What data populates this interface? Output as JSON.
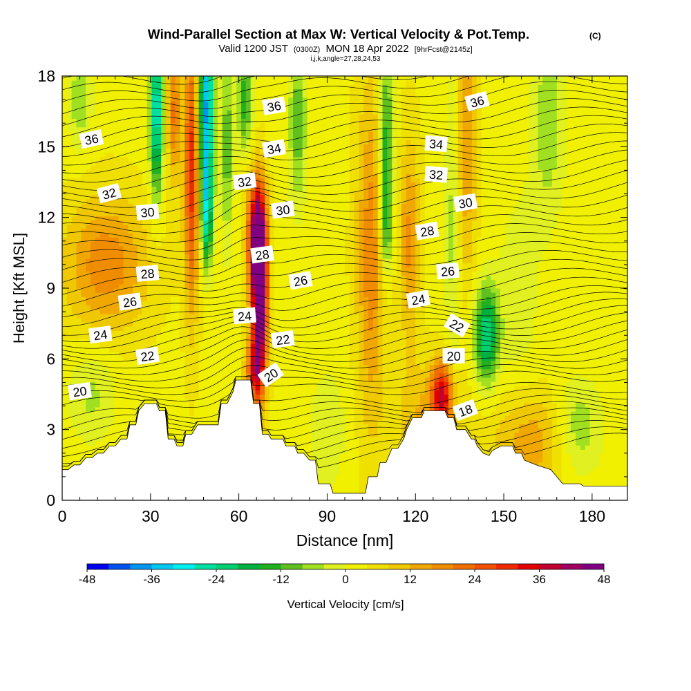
{
  "chart_data": {
    "type": "heatmap",
    "title": "Wind-Parallel Section at Max W: Vertical Velocity & Pot.Temp.",
    "title_tag": "(C)",
    "subtitle": {
      "valid": "Valid 1200 JST",
      "utc": "(0300Z)",
      "date": "MON 18 Apr 2022",
      "forecast": "[9hrFcst@2145z]"
    },
    "subtitle2": "i,j,k,angle=27,28,24,53",
    "xlabel": "Distance [nm]",
    "ylabel": "Height [Kft MSL]",
    "xlim": [
      0,
      192
    ],
    "ylim": [
      0,
      18
    ],
    "xticks": [
      0,
      30,
      60,
      90,
      120,
      150,
      180
    ],
    "yticks": [
      0,
      3,
      6,
      9,
      12,
      15,
      18
    ],
    "colorbar": {
      "label": "Vertical Velocity [cm/s]",
      "range": [
        -48,
        48
      ],
      "step": 4,
      "ticks": [
        -48,
        -36,
        -24,
        -12,
        0,
        12,
        24,
        36,
        48
      ],
      "colors": [
        "#0000f0",
        "#0050f0",
        "#0096f0",
        "#00c8f0",
        "#00f0f0",
        "#00e0a0",
        "#00d070",
        "#00b040",
        "#20b020",
        "#60c020",
        "#a0e020",
        "#e0f020",
        "#f0f000",
        "#f0e000",
        "#f0c800",
        "#f0a800",
        "#f08c00",
        "#f06e00",
        "#f05000",
        "#f02800",
        "#e00000",
        "#c00030",
        "#a00060",
        "#800080"
      ]
    },
    "theta_contours_C": [
      18,
      20,
      22,
      24,
      26,
      28,
      30,
      32,
      34,
      36
    ],
    "contour_labels": [
      {
        "text": "36",
        "x": 10,
        "y": 15.3,
        "angle": -12
      },
      {
        "text": "36",
        "x": 72,
        "y": 16.7,
        "angle": -10
      },
      {
        "text": "36",
        "x": 141,
        "y": 16.9,
        "angle": -15
      },
      {
        "text": "34",
        "x": 72,
        "y": 14.9,
        "angle": -10
      },
      {
        "text": "34",
        "x": 127,
        "y": 15.1,
        "angle": 5
      },
      {
        "text": "32",
        "x": 16,
        "y": 13.0,
        "angle": -15
      },
      {
        "text": "32",
        "x": 62,
        "y": 13.5,
        "angle": -8
      },
      {
        "text": "32",
        "x": 127,
        "y": 13.8,
        "angle": 5
      },
      {
        "text": "30",
        "x": 29,
        "y": 12.2,
        "angle": -5
      },
      {
        "text": "30",
        "x": 75,
        "y": 12.3,
        "angle": -8
      },
      {
        "text": "30",
        "x": 137,
        "y": 12.6,
        "angle": -10
      },
      {
        "text": "28",
        "x": 29,
        "y": 9.6,
        "angle": -5
      },
      {
        "text": "28",
        "x": 68,
        "y": 10.4,
        "angle": -8
      },
      {
        "text": "28",
        "x": 124,
        "y": 11.4,
        "angle": -10
      },
      {
        "text": "26",
        "x": 23,
        "y": 8.4,
        "angle": -8
      },
      {
        "text": "26",
        "x": 81,
        "y": 9.3,
        "angle": -10
      },
      {
        "text": "26",
        "x": 131,
        "y": 9.7,
        "angle": -5
      },
      {
        "text": "24",
        "x": 13,
        "y": 7.0,
        "angle": -8
      },
      {
        "text": "24",
        "x": 62,
        "y": 7.8,
        "angle": -5
      },
      {
        "text": "24",
        "x": 121,
        "y": 8.5,
        "angle": -10
      },
      {
        "text": "22",
        "x": 29,
        "y": 6.1,
        "angle": -8
      },
      {
        "text": "22",
        "x": 75,
        "y": 6.8,
        "angle": -8
      },
      {
        "text": "22",
        "x": 134,
        "y": 7.4,
        "angle": 30
      },
      {
        "text": "20",
        "x": 6,
        "y": 4.6,
        "angle": -8
      },
      {
        "text": "20",
        "x": 71,
        "y": 5.3,
        "angle": -35
      },
      {
        "text": "20",
        "x": 133,
        "y": 6.1,
        "angle": 0
      },
      {
        "text": "18",
        "x": 137,
        "y": 3.8,
        "angle": -20
      }
    ],
    "terrain_kft": [
      [
        0,
        1.3
      ],
      [
        2,
        1.3
      ],
      [
        4,
        1.5
      ],
      [
        6,
        1.5
      ],
      [
        8,
        1.8
      ],
      [
        10,
        1.8
      ],
      [
        12,
        2.0
      ],
      [
        14,
        2.0
      ],
      [
        16,
        2.3
      ],
      [
        18,
        2.3
      ],
      [
        20,
        2.6
      ],
      [
        22,
        2.6
      ],
      [
        23,
        3.2
      ],
      [
        25,
        3.2
      ],
      [
        26,
        3.8
      ],
      [
        28,
        4.1
      ],
      [
        32,
        4.1
      ],
      [
        33,
        3.8
      ],
      [
        35,
        3.8
      ],
      [
        36,
        2.6
      ],
      [
        38,
        2.6
      ],
      [
        39,
        2.3
      ],
      [
        41,
        2.3
      ],
      [
        42,
        2.8
      ],
      [
        44,
        2.8
      ],
      [
        46,
        3.2
      ],
      [
        49,
        3.2
      ],
      [
        51,
        3.2
      ],
      [
        53,
        3.2
      ],
      [
        54,
        4.1
      ],
      [
        56,
        4.1
      ],
      [
        58,
        4.6
      ],
      [
        59,
        5.1
      ],
      [
        64,
        5.1
      ],
      [
        65,
        4.1
      ],
      [
        67,
        4.1
      ],
      [
        68,
        2.8
      ],
      [
        70,
        2.8
      ],
      [
        71,
        2.6
      ],
      [
        75,
        2.6
      ],
      [
        76,
        2.3
      ],
      [
        79,
        2.3
      ],
      [
        80,
        2.0
      ],
      [
        82,
        2.0
      ],
      [
        84,
        1.7
      ],
      [
        86,
        1.7
      ],
      [
        87,
        0.7
      ],
      [
        91,
        0.7
      ],
      [
        92,
        0.3
      ],
      [
        103,
        0.3
      ],
      [
        104,
        1.0
      ],
      [
        107,
        1.0
      ],
      [
        108,
        1.6
      ],
      [
        110,
        1.6
      ],
      [
        112,
        2.2
      ],
      [
        114,
        2.2
      ],
      [
        116,
        2.6
      ],
      [
        117,
        3.0
      ],
      [
        119,
        3.5
      ],
      [
        122,
        3.5
      ],
      [
        123,
        3.8
      ],
      [
        128,
        3.8
      ],
      [
        130,
        3.8
      ],
      [
        131,
        3.5
      ],
      [
        133,
        3.5
      ],
      [
        134,
        3.0
      ],
      [
        137,
        3.0
      ],
      [
        139,
        2.6
      ],
      [
        140,
        2.6
      ],
      [
        141,
        2.3
      ],
      [
        143,
        2.0
      ],
      [
        145,
        1.9
      ],
      [
        146,
        2.1
      ],
      [
        149,
        2.3
      ],
      [
        153,
        2.3
      ],
      [
        154,
        2.0
      ],
      [
        156,
        2.0
      ],
      [
        157,
        1.7
      ],
      [
        161,
        1.5
      ],
      [
        166,
        1.3
      ],
      [
        168,
        1.0
      ],
      [
        170,
        0.7
      ],
      [
        176,
        0.7
      ],
      [
        177,
        0.6
      ],
      [
        185,
        0.6
      ],
      [
        192,
        0.6
      ]
    ],
    "w_features": [
      {
        "x": 67,
        "y": 8.6,
        "sx": 1.8,
        "sy": 2.6,
        "w": 52
      },
      {
        "x": 66,
        "y": 11.2,
        "sx": 2.2,
        "sy": 1.6,
        "w": 36
      },
      {
        "x": 65,
        "y": 5.5,
        "sx": 2.0,
        "sy": 0.9,
        "w": 22
      },
      {
        "x": 44,
        "y": 14.0,
        "sx": 1.8,
        "sy": 4.0,
        "w": 28
      },
      {
        "x": 38,
        "y": 16.5,
        "sx": 1.6,
        "sy": 2.0,
        "w": 18
      },
      {
        "x": 15,
        "y": 10.0,
        "sx": 10,
        "sy": 2.0,
        "w": 16
      },
      {
        "x": 105,
        "y": 10.5,
        "sx": 3.5,
        "sy": 5.0,
        "w": 16
      },
      {
        "x": 118,
        "y": 11.0,
        "sx": 2.5,
        "sy": 3.0,
        "w": 14
      },
      {
        "x": 129,
        "y": 4.5,
        "sx": 2.5,
        "sy": 1.0,
        "w": 28
      },
      {
        "x": 137,
        "y": 15.0,
        "sx": 2.5,
        "sy": 4.0,
        "w": 14
      },
      {
        "x": 125,
        "y": 3.5,
        "sx": 8,
        "sy": 1.6,
        "w": 10
      },
      {
        "x": 160,
        "y": 2.5,
        "sx": 10,
        "sy": 1.5,
        "w": 12
      },
      {
        "x": 32,
        "y": 16.5,
        "sx": 1.6,
        "sy": 2.5,
        "w": -32
      },
      {
        "x": 49,
        "y": 16.5,
        "sx": 1.8,
        "sy": 3.0,
        "w": -40
      },
      {
        "x": 49,
        "y": 12.0,
        "sx": 1.4,
        "sy": 1.5,
        "w": -20
      },
      {
        "x": 56,
        "y": 15.0,
        "sx": 1.5,
        "sy": 3.0,
        "w": -14
      },
      {
        "x": 62,
        "y": 17.0,
        "sx": 1.8,
        "sy": 1.5,
        "w": -18
      },
      {
        "x": 80,
        "y": 16.0,
        "sx": 2.2,
        "sy": 2.5,
        "w": -14
      },
      {
        "x": 110,
        "y": 15.0,
        "sx": 1.8,
        "sy": 3.0,
        "w": -20
      },
      {
        "x": 110,
        "y": 11.5,
        "sx": 1.4,
        "sy": 1.5,
        "w": -12
      },
      {
        "x": 144,
        "y": 7.0,
        "sx": 3.0,
        "sy": 1.5,
        "w": -26
      },
      {
        "x": 133,
        "y": 12.0,
        "sx": 2.0,
        "sy": 5.0,
        "w": -10
      },
      {
        "x": 165,
        "y": 16.0,
        "sx": 4.0,
        "sy": 3.0,
        "w": -10
      },
      {
        "x": 175,
        "y": 3.0,
        "sx": 6.0,
        "sy": 1.5,
        "w": -12
      },
      {
        "x": 10,
        "y": 4.5,
        "sx": 6.0,
        "sy": 1.5,
        "w": -8
      },
      {
        "x": 6,
        "y": 17.0,
        "sx": 3.0,
        "sy": 1.5,
        "w": -10
      },
      {
        "x": 155,
        "y": 9.0,
        "sx": 5.0,
        "sy": 3.0,
        "w": -6
      },
      {
        "x": 90,
        "y": 3.0,
        "sx": 5.0,
        "sy": 2.0,
        "w": -6
      }
    ]
  }
}
